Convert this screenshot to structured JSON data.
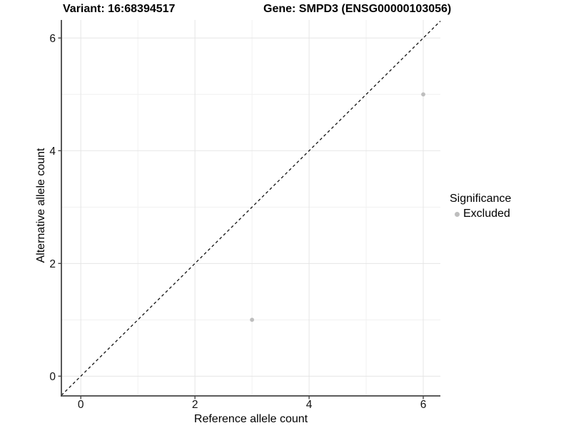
{
  "titles": {
    "left": "Variant: 16:68394517",
    "right": "Gene: SMPD3 (ENSG00000103056)"
  },
  "chart_data": {
    "type": "scatter",
    "xlabel": "Reference allele count",
    "ylabel": "Alternative allele count",
    "xlim": [
      -0.34,
      6.3
    ],
    "ylim": [
      -0.35,
      6.32
    ],
    "x_ticks": [
      0,
      2,
      4,
      6
    ],
    "y_ticks": [
      0,
      2,
      4,
      6
    ],
    "x_minor_ticks": [
      1,
      3,
      5
    ],
    "y_minor_ticks": [
      1,
      3,
      5
    ],
    "grid": "major+minor",
    "legend_position": "right",
    "identity_line": {
      "slope": 1,
      "intercept": 0,
      "style": "dashed",
      "color": "#111111"
    },
    "series": [
      {
        "name": "Excluded",
        "color": "#bebebe",
        "points": [
          [
            3,
            1
          ],
          [
            6,
            5
          ]
        ]
      }
    ],
    "legend": {
      "title": "Significance",
      "items": [
        {
          "label": "Excluded",
          "color": "#bebebe"
        }
      ]
    }
  },
  "colors": {
    "background": "#ffffff",
    "grid_major": "#e5e5e5",
    "grid_minor": "#f1f1f1",
    "axis_line": "#454545",
    "tick_mark": "#454545",
    "tick_label": "#111111",
    "point": "#bebebe"
  }
}
